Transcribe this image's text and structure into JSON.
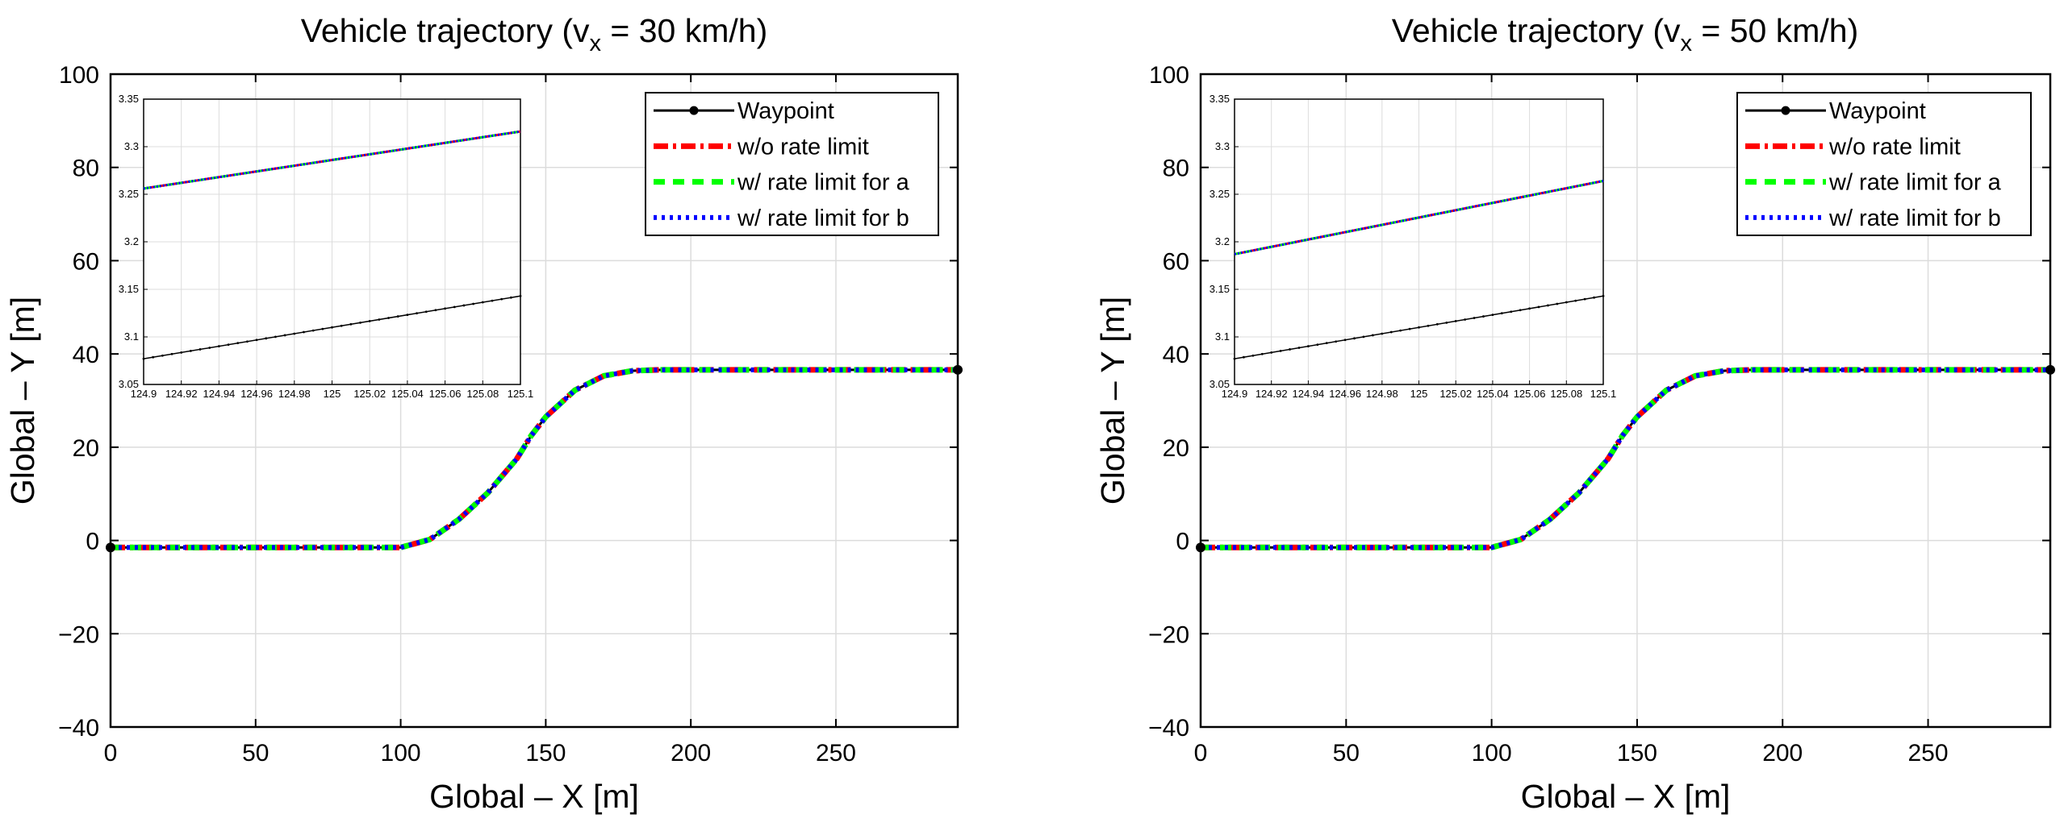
{
  "chart_data": [
    {
      "type": "line",
      "title_prefix": "Vehicle trajectory (v",
      "title_sub": "x",
      "title_suffix": " = 30 km/h)",
      "xlabel": "Global – X [m]",
      "ylabel": "Global – Y [m]",
      "xlim": [
        0,
        292
      ],
      "ylim": [
        -40,
        100
      ],
      "xticks": [
        0,
        50,
        100,
        150,
        200,
        250
      ],
      "yticks": [
        -40,
        -20,
        0,
        20,
        40,
        60,
        80,
        100
      ],
      "grid": true,
      "legend_position": "top-right",
      "legend": [
        "Waypoint",
        "w/o rate limit",
        "w/ rate limit for a",
        "w/ rate limit for b"
      ],
      "series": [
        {
          "name": "Waypoint",
          "color": "#000000",
          "style": "solid-dots",
          "x": [
            0,
            20,
            40,
            60,
            80,
            100,
            110,
            120,
            130,
            140,
            145,
            150,
            160,
            170,
            180,
            190,
            210,
            230,
            250,
            270,
            292
          ],
          "y": [
            -1.5,
            -1.5,
            -1.5,
            -1.5,
            -1.5,
            -1.5,
            0.2,
            4.5,
            10.2,
            17.5,
            22.5,
            26.5,
            32.2,
            35.3,
            36.4,
            36.6,
            36.6,
            36.6,
            36.6,
            36.6,
            36.6
          ]
        },
        {
          "name": "w/o rate limit",
          "color": "#ff0000",
          "style": "dash-dot",
          "x": [
            0,
            20,
            40,
            60,
            80,
            100,
            110,
            120,
            130,
            140,
            145,
            150,
            160,
            170,
            180,
            190,
            210,
            230,
            250,
            270,
            292
          ],
          "y": [
            -1.5,
            -1.5,
            -1.5,
            -1.5,
            -1.5,
            -1.5,
            0.2,
            4.5,
            10.2,
            17.5,
            22.5,
            26.5,
            32.2,
            35.3,
            36.4,
            36.6,
            36.6,
            36.6,
            36.6,
            36.6,
            36.6
          ]
        },
        {
          "name": "w/ rate limit for a",
          "color": "#00ff00",
          "style": "dashed",
          "x": [
            0,
            20,
            40,
            60,
            80,
            100,
            110,
            120,
            130,
            140,
            145,
            150,
            160,
            170,
            180,
            190,
            210,
            230,
            250,
            270,
            292
          ],
          "y": [
            -1.5,
            -1.5,
            -1.5,
            -1.5,
            -1.5,
            -1.5,
            0.2,
            4.5,
            10.2,
            17.5,
            22.5,
            26.5,
            32.2,
            35.3,
            36.4,
            36.6,
            36.6,
            36.6,
            36.6,
            36.6,
            36.6
          ]
        },
        {
          "name": "w/ rate limit for b",
          "color": "#0000ff",
          "style": "dotted",
          "x": [
            0,
            20,
            40,
            60,
            80,
            100,
            110,
            120,
            130,
            140,
            145,
            150,
            160,
            170,
            180,
            190,
            210,
            230,
            250,
            270,
            292
          ],
          "y": [
            -1.5,
            -1.5,
            -1.5,
            -1.5,
            -1.5,
            -1.5,
            0.2,
            4.5,
            10.2,
            17.5,
            22.5,
            26.5,
            32.2,
            35.3,
            36.4,
            36.6,
            36.6,
            36.6,
            36.6,
            36.6,
            36.6
          ]
        }
      ],
      "inset": {
        "xlim": [
          124.9,
          125.1
        ],
        "ylim": [
          3.05,
          3.35
        ],
        "xtick_values": [
          124.9,
          124.92,
          124.94,
          124.96,
          124.98,
          125,
          125.02,
          125.04,
          125.06,
          125.08,
          125.1
        ],
        "xtick_labels": [
          "124.9",
          "124.92",
          "124.94",
          "124.96",
          "124.98",
          "125",
          "125.02",
          "125.04",
          "125.06",
          "125.08",
          "125.1"
        ],
        "ytick_values": [
          3.05,
          3.1,
          3.15,
          3.2,
          3.25,
          3.3,
          3.35
        ],
        "ytick_labels": [
          "3.05",
          "3.1",
          "3.15",
          "3.2",
          "3.25",
          "3.3",
          "3.35"
        ],
        "waypoint": {
          "x": [
            124.9,
            125.1
          ],
          "y": [
            3.077,
            3.143
          ]
        },
        "trajectory": {
          "x": [
            124.9,
            125.1
          ],
          "y": [
            3.256,
            3.316
          ]
        }
      }
    },
    {
      "type": "line",
      "title_prefix": "Vehicle trajectory (v",
      "title_sub": "x",
      "title_suffix": " = 50 km/h)",
      "xlabel": "Global – X [m]",
      "ylabel": "Global – Y [m]",
      "xlim": [
        0,
        292
      ],
      "ylim": [
        -40,
        100
      ],
      "xticks": [
        0,
        50,
        100,
        150,
        200,
        250
      ],
      "yticks": [
        -40,
        -20,
        0,
        20,
        40,
        60,
        80,
        100
      ],
      "grid": true,
      "legend_position": "top-right",
      "legend": [
        "Waypoint",
        "w/o rate limit",
        "w/ rate limit for a",
        "w/ rate limit for b"
      ],
      "series": [
        {
          "name": "Waypoint",
          "color": "#000000",
          "style": "solid-dots",
          "x": [
            0,
            20,
            40,
            60,
            80,
            100,
            110,
            120,
            130,
            140,
            145,
            150,
            160,
            170,
            180,
            190,
            210,
            230,
            250,
            270,
            292
          ],
          "y": [
            -1.5,
            -1.5,
            -1.5,
            -1.5,
            -1.5,
            -1.5,
            0.2,
            4.5,
            10.2,
            17.5,
            22.5,
            26.5,
            32.2,
            35.3,
            36.4,
            36.6,
            36.6,
            36.6,
            36.6,
            36.6,
            36.6
          ]
        },
        {
          "name": "w/o rate limit",
          "color": "#ff0000",
          "style": "dash-dot",
          "x": [
            0,
            20,
            40,
            60,
            80,
            100,
            110,
            120,
            130,
            140,
            145,
            150,
            160,
            170,
            180,
            190,
            210,
            230,
            250,
            270,
            292
          ],
          "y": [
            -1.5,
            -1.5,
            -1.5,
            -1.5,
            -1.5,
            -1.5,
            0.2,
            4.5,
            10.2,
            17.5,
            22.5,
            26.5,
            32.2,
            35.3,
            36.4,
            36.6,
            36.6,
            36.6,
            36.6,
            36.6,
            36.6
          ]
        },
        {
          "name": "w/ rate limit for a",
          "color": "#00ff00",
          "style": "dashed",
          "x": [
            0,
            20,
            40,
            60,
            80,
            100,
            110,
            120,
            130,
            140,
            145,
            150,
            160,
            170,
            180,
            190,
            210,
            230,
            250,
            270,
            292
          ],
          "y": [
            -1.5,
            -1.5,
            -1.5,
            -1.5,
            -1.5,
            -1.5,
            0.2,
            4.5,
            10.2,
            17.5,
            22.5,
            26.5,
            32.2,
            35.3,
            36.4,
            36.6,
            36.6,
            36.6,
            36.6,
            36.6,
            36.6
          ]
        },
        {
          "name": "w/ rate limit for b",
          "color": "#0000ff",
          "style": "dotted",
          "x": [
            0,
            20,
            40,
            60,
            80,
            100,
            110,
            120,
            130,
            140,
            145,
            150,
            160,
            170,
            180,
            190,
            210,
            230,
            250,
            270,
            292
          ],
          "y": [
            -1.5,
            -1.5,
            -1.5,
            -1.5,
            -1.5,
            -1.5,
            0.2,
            4.5,
            10.2,
            17.5,
            22.5,
            26.5,
            32.2,
            35.3,
            36.4,
            36.6,
            36.6,
            36.6,
            36.6,
            36.6,
            36.6
          ]
        }
      ],
      "inset": {
        "xlim": [
          124.9,
          125.1
        ],
        "ylim": [
          3.05,
          3.35
        ],
        "xtick_values": [
          124.9,
          124.92,
          124.94,
          124.96,
          124.98,
          125,
          125.02,
          125.04,
          125.06,
          125.08,
          125.1
        ],
        "xtick_labels": [
          "124.9",
          "124.92",
          "124.94",
          "124.96",
          "124.98",
          "125",
          "125.02",
          "125.04",
          "125.06",
          "125.08",
          "125.1"
        ],
        "ytick_values": [
          3.05,
          3.1,
          3.15,
          3.2,
          3.25,
          3.3,
          3.35
        ],
        "ytick_labels": [
          "3.05",
          "3.1",
          "3.15",
          "3.2",
          "3.25",
          "3.3",
          "3.35"
        ],
        "waypoint": {
          "x": [
            124.9,
            125.1
          ],
          "y": [
            3.077,
            3.143
          ]
        },
        "trajectory": {
          "x": [
            124.9,
            125.1
          ],
          "y": [
            3.187,
            3.264
          ]
        }
      }
    }
  ]
}
